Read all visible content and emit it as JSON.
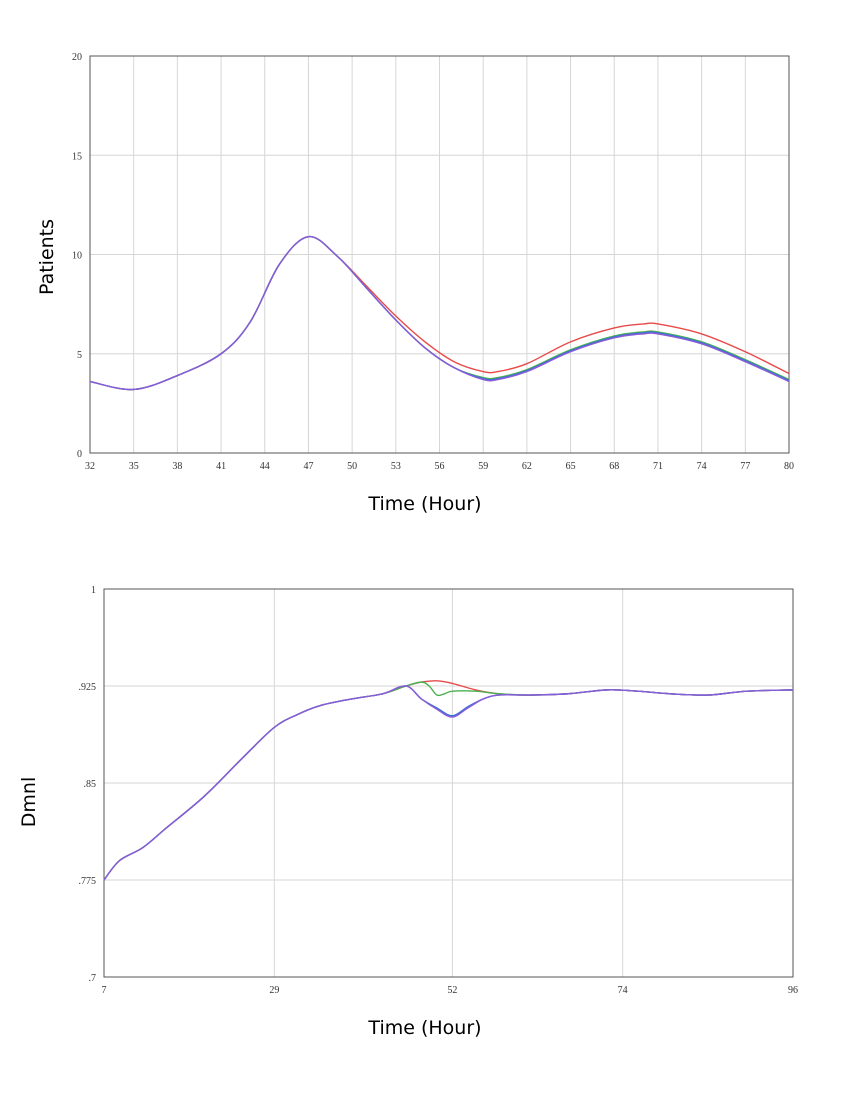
{
  "chart_data": [
    {
      "type": "line",
      "xlabel": "Time (Hour)",
      "ylabel": "Patients",
      "xlim": [
        32,
        80
      ],
      "ylim": [
        0,
        20
      ],
      "x_ticks": [
        "32",
        "35",
        "38",
        "41",
        "44",
        "47",
        "50",
        "53",
        "56",
        "59",
        "62",
        "65",
        "68",
        "71",
        "74",
        "77",
        "80"
      ],
      "y_ticks": [
        "0",
        "5",
        "10",
        "15",
        "20"
      ],
      "grid": true,
      "legend": "none",
      "series": [
        {
          "color": "#e84a4a",
          "x": [
            32,
            35,
            38,
            41,
            43,
            45,
            47,
            49,
            51,
            53,
            55,
            57,
            59,
            60,
            62,
            65,
            68,
            70,
            71,
            74,
            77,
            80
          ],
          "y": [
            3.6,
            3.2,
            3.9,
            5.0,
            6.6,
            9.5,
            10.9,
            9.9,
            8.4,
            6.9,
            5.6,
            4.6,
            4.1,
            4.1,
            4.5,
            5.6,
            6.3,
            6.5,
            6.5,
            6.0,
            5.1,
            4.0
          ]
        },
        {
          "color": "#4caf50",
          "x": [
            32,
            35,
            38,
            41,
            43,
            45,
            47,
            49,
            51,
            53,
            55,
            57,
            59,
            60,
            62,
            65,
            68,
            70,
            71,
            74,
            77,
            80
          ],
          "y": [
            3.6,
            3.2,
            3.9,
            5.0,
            6.6,
            9.5,
            10.9,
            9.9,
            8.3,
            6.7,
            5.3,
            4.3,
            3.8,
            3.8,
            4.2,
            5.2,
            5.9,
            6.1,
            6.1,
            5.6,
            4.7,
            3.7
          ]
        },
        {
          "color": "#3b6fd6",
          "x": [
            32,
            35,
            38,
            41,
            43,
            45,
            47,
            49,
            51,
            53,
            55,
            57,
            59,
            60,
            62,
            65,
            68,
            70,
            71,
            74,
            77,
            80
          ],
          "y": [
            3.6,
            3.2,
            3.9,
            5.0,
            6.6,
            9.5,
            10.9,
            9.9,
            8.3,
            6.7,
            5.3,
            4.3,
            3.75,
            3.75,
            4.15,
            5.15,
            5.85,
            6.05,
            6.05,
            5.55,
            4.65,
            3.65
          ]
        },
        {
          "color": "#8a5cd8",
          "x": [
            32,
            35,
            38,
            41,
            43,
            45,
            47,
            49,
            51,
            53,
            55,
            57,
            59,
            60,
            62,
            65,
            68,
            70,
            71,
            74,
            77,
            80
          ],
          "y": [
            3.6,
            3.2,
            3.9,
            5.0,
            6.6,
            9.5,
            10.9,
            9.9,
            8.3,
            6.7,
            5.3,
            4.3,
            3.7,
            3.7,
            4.1,
            5.1,
            5.8,
            6.0,
            6.0,
            5.5,
            4.6,
            3.6
          ]
        }
      ]
    },
    {
      "type": "line",
      "xlabel": "Time (Hour)",
      "ylabel": "Dmnl",
      "xlim": [
        7,
        96
      ],
      "ylim": [
        0.7,
        1.0
      ],
      "x_ticks": [
        "7",
        "29",
        "52",
        "74",
        "96"
      ],
      "y_ticks": [
        ".7",
        ".775",
        ".85",
        ".925",
        "1"
      ],
      "grid": true,
      "legend": "none",
      "series": [
        {
          "color": "#e84a4a",
          "x": [
            7,
            9,
            12,
            15,
            20,
            25,
            29,
            32,
            35,
            39,
            43,
            46,
            48,
            50,
            52,
            55,
            58,
            62,
            67,
            72,
            76,
            80,
            85,
            90,
            96
          ],
          "y": [
            0.775,
            0.79,
            0.8,
            0.815,
            0.84,
            0.87,
            0.893,
            0.903,
            0.91,
            0.915,
            0.919,
            0.925,
            0.928,
            0.929,
            0.927,
            0.922,
            0.919,
            0.918,
            0.919,
            0.922,
            0.921,
            0.919,
            0.918,
            0.921,
            0.922
          ]
        },
        {
          "color": "#4caf50",
          "x": [
            7,
            9,
            12,
            15,
            20,
            25,
            29,
            32,
            35,
            39,
            43,
            46,
            48,
            49,
            50,
            51,
            52,
            55,
            58,
            62,
            67,
            72,
            76,
            80,
            85,
            90,
            96
          ],
          "y": [
            0.775,
            0.79,
            0.8,
            0.815,
            0.84,
            0.87,
            0.893,
            0.903,
            0.91,
            0.915,
            0.919,
            0.925,
            0.928,
            0.925,
            0.918,
            0.919,
            0.921,
            0.921,
            0.919,
            0.918,
            0.919,
            0.922,
            0.921,
            0.919,
            0.918,
            0.921,
            0.922
          ]
        },
        {
          "color": "#3b6fd6",
          "x": [
            7,
            9,
            12,
            15,
            20,
            25,
            29,
            32,
            35,
            39,
            43,
            46,
            48,
            50,
            52,
            54,
            56,
            58,
            62,
            67,
            72,
            76,
            80,
            85,
            90,
            96
          ],
          "y": [
            0.775,
            0.79,
            0.8,
            0.815,
            0.84,
            0.87,
            0.893,
            0.903,
            0.91,
            0.915,
            0.919,
            0.925,
            0.915,
            0.908,
            0.902,
            0.909,
            0.915,
            0.918,
            0.918,
            0.919,
            0.922,
            0.921,
            0.919,
            0.918,
            0.921,
            0.922
          ]
        },
        {
          "color": "#8a5cd8",
          "x": [
            7,
            9,
            12,
            15,
            20,
            25,
            29,
            32,
            35,
            39,
            43,
            46,
            48,
            50,
            52,
            54,
            56,
            58,
            62,
            67,
            72,
            76,
            80,
            85,
            90,
            96
          ],
          "y": [
            0.775,
            0.79,
            0.8,
            0.815,
            0.84,
            0.87,
            0.893,
            0.903,
            0.91,
            0.915,
            0.919,
            0.925,
            0.915,
            0.907,
            0.901,
            0.908,
            0.915,
            0.918,
            0.918,
            0.919,
            0.922,
            0.921,
            0.919,
            0.918,
            0.921,
            0.922
          ]
        }
      ]
    }
  ]
}
